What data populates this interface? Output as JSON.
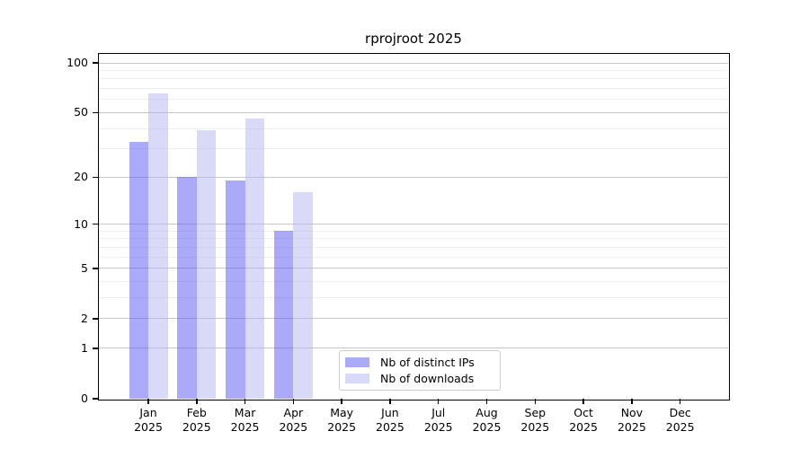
{
  "title": "rprojroot 2025",
  "chart_data": {
    "type": "bar",
    "title": "rprojroot 2025",
    "y_scale": "log10(value+1)",
    "ylim": [
      0,
      114
    ],
    "grid": "on",
    "legend_position": "inside plot, bottom center-right",
    "categories": [
      "Jan",
      "Feb",
      "Mar",
      "Apr",
      "May",
      "Jun",
      "Jul",
      "Aug",
      "Sep",
      "Oct",
      "Nov",
      "Dec"
    ],
    "x_tick_year": "2025",
    "y_ticks": [
      0,
      1,
      2,
      5,
      10,
      20,
      50,
      100
    ],
    "y_minor_gridlines": [
      3,
      4,
      6,
      7,
      8,
      9,
      30,
      40,
      60,
      70,
      80,
      90
    ],
    "series": [
      {
        "name": "Nb of distinct IPs",
        "color": "rgba(85,85,242,0.5)",
        "solid_color_hex": "#aaaaf8",
        "values": [
          33,
          20,
          19,
          9,
          null,
          null,
          null,
          null,
          null,
          null,
          null,
          null
        ]
      },
      {
        "name": "Nb of downloads",
        "color": "rgba(180,180,242,0.5)",
        "solid_color_hex": "#dadaf8",
        "values": [
          65,
          39,
          46,
          16,
          null,
          null,
          null,
          null,
          null,
          null,
          null,
          null
        ]
      }
    ]
  }
}
